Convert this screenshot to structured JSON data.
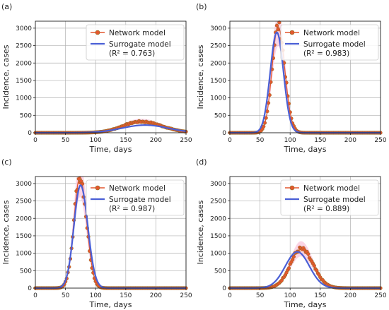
{
  "figure": {
    "xlabel": "Time, days",
    "ylabel": "Incidence, cases",
    "xticks": [
      0,
      50,
      100,
      150,
      200,
      250
    ],
    "yticks": [
      0,
      500,
      1000,
      1500,
      2000,
      2500,
      3000
    ],
    "legend": {
      "network": "Network model",
      "surrogate": "Surrogate model"
    }
  },
  "colors": {
    "network": "#e4572e",
    "network_edge": "#8a6d1f",
    "surrogate": "#4a5fd6",
    "band": "#f9c6dc",
    "grid": "#b0b0b0"
  },
  "chart_data": [
    {
      "type": "line",
      "label": "(a)",
      "xlabel": "Time, days",
      "ylabel": "Incidence, cases",
      "xlim": [
        0,
        250
      ],
      "ylim": [
        0,
        3200
      ],
      "grid": true,
      "legend_position": "top-right",
      "r2": "(R² = 0.763)",
      "network": {
        "mean": 175,
        "sd_left": 30,
        "sd_right": 35,
        "peak": 320
      },
      "surrogate": {
        "mean": 182,
        "sd_left": 38,
        "sd_right": 38,
        "peak": 220
      },
      "series": [
        {
          "name": "Network model",
          "style": "orange points",
          "x": [
            0,
            50,
            100,
            125,
            150,
            175,
            200,
            225,
            250
          ],
          "y": [
            0,
            5,
            35,
            110,
            220,
            320,
            250,
            120,
            40
          ]
        },
        {
          "name": "Surrogate model",
          "style": "blue line",
          "x": [
            0,
            50,
            100,
            125,
            150,
            180,
            200,
            225,
            250
          ],
          "y": [
            0,
            10,
            45,
            95,
            160,
            220,
            195,
            120,
            50
          ]
        }
      ]
    },
    {
      "type": "line",
      "label": "(b)",
      "xlabel": "Time, days",
      "ylabel": "Incidence, cases",
      "xlim": [
        0,
        250
      ],
      "ylim": [
        0,
        3200
      ],
      "grid": true,
      "legend_position": "top-right",
      "r2": "(R² = 0.983)",
      "network": {
        "mean": 80,
        "sd_left": 10,
        "sd_right": 11,
        "peak": 3050
      },
      "surrogate": {
        "mean": 78,
        "sd_left": 11,
        "sd_right": 11,
        "peak": 2880
      },
      "series": [
        {
          "name": "Network model",
          "style": "orange points",
          "x": [
            0,
            50,
            65,
            80,
            95,
            110,
            125,
            150,
            250
          ],
          "y": [
            0,
            60,
            1000,
            3050,
            1200,
            150,
            20,
            0,
            0
          ]
        },
        {
          "name": "Surrogate model",
          "style": "blue line",
          "x": [
            0,
            50,
            65,
            78,
            95,
            110,
            125,
            150,
            250
          ],
          "y": [
            0,
            80,
            1200,
            2880,
            950,
            140,
            15,
            0,
            0
          ]
        }
      ]
    },
    {
      "type": "line",
      "label": "(c)",
      "xlabel": "Time, days",
      "ylabel": "Incidence, cases",
      "xlim": [
        0,
        250
      ],
      "ylim": [
        0,
        3200
      ],
      "grid": true,
      "legend_position": "top-right",
      "r2": "(R² = 0.987)",
      "network": {
        "mean": 74,
        "sd_left": 10,
        "sd_right": 11,
        "peak": 3200
      },
      "surrogate": {
        "mean": 75,
        "sd_left": 11,
        "sd_right": 12,
        "peak": 2950
      },
      "series": [
        {
          "name": "Network model",
          "style": "orange points",
          "x": [
            0,
            45,
            60,
            74,
            90,
            105,
            125,
            150,
            250
          ],
          "y": [
            0,
            60,
            1200,
            3200,
            1100,
            150,
            10,
            0,
            0
          ]
        },
        {
          "name": "Surrogate model",
          "style": "blue line",
          "x": [
            0,
            45,
            60,
            75,
            90,
            105,
            125,
            150,
            250
          ],
          "y": [
            0,
            70,
            1100,
            2950,
            1200,
            200,
            10,
            0,
            0
          ]
        }
      ]
    },
    {
      "type": "line",
      "label": "(d)",
      "xlabel": "Time, days",
      "ylabel": "Incidence, cases",
      "xlim": [
        0,
        250
      ],
      "ylim": [
        0,
        3200
      ],
      "grid": true,
      "legend_position": "top-right",
      "r2": "(R² = 0.889)",
      "network": {
        "mean": 118,
        "sd_left": 18,
        "sd_right": 20,
        "peak": 1120
      },
      "surrogate": {
        "mean": 112,
        "sd_left": 20,
        "sd_right": 20,
        "peak": 1040
      },
      "series": [
        {
          "name": "Network model",
          "style": "orange points",
          "x": [
            0,
            75,
            100,
            118,
            135,
            150,
            175,
            200,
            250
          ],
          "y": [
            0,
            80,
            600,
            1120,
            820,
            400,
            70,
            5,
            0
          ]
        },
        {
          "name": "Surrogate model",
          "style": "blue line",
          "x": [
            0,
            75,
            95,
            112,
            130,
            150,
            175,
            200,
            250
          ],
          "y": [
            0,
            180,
            720,
            1040,
            700,
            260,
            30,
            2,
            0
          ]
        }
      ]
    }
  ]
}
